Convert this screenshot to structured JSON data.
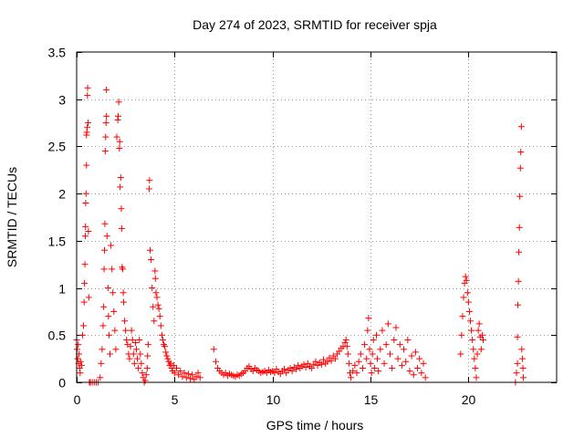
{
  "chart_data": {
    "type": "scatter",
    "title": "Day 274 of 2023, SRMTID for receiver spja",
    "xlabel": "GPS time / hours",
    "ylabel": "SRMTID / TECUs",
    "xlim": [
      0,
      24.5
    ],
    "ylim": [
      0,
      3.5
    ],
    "grid": true,
    "marker": "+",
    "color": "#ff0000",
    "x_ticks": [
      0,
      5,
      10,
      15,
      20
    ],
    "x_tick_labels": [
      "0",
      "5",
      "10",
      "15",
      "20"
    ],
    "y_ticks": [
      0,
      0.5,
      1,
      1.5,
      2,
      2.5,
      3,
      3.5
    ],
    "y_tick_labels": [
      "0",
      "0.5",
      "1",
      "1.5",
      "2",
      "2.5",
      "3",
      "3.5"
    ],
    "series": [
      {
        "name": "SRMTID",
        "points": [
          [
            0.0,
            0.45
          ],
          [
            0.02,
            0.35
          ],
          [
            0.05,
            0.25
          ],
          [
            0.08,
            0.4
          ],
          [
            0.1,
            0.2
          ],
          [
            0.12,
            0.3
          ],
          [
            0.15,
            0.15
          ],
          [
            0.18,
            0.1
          ],
          [
            0.2,
            0.22
          ],
          [
            0.25,
            0.18
          ],
          [
            0.3,
            0.5
          ],
          [
            0.35,
            0.6
          ],
          [
            0.38,
            0.85
          ],
          [
            0.4,
            1.05
          ],
          [
            0.42,
            1.25
          ],
          [
            0.44,
            1.55
          ],
          [
            0.45,
            1.65
          ],
          [
            0.46,
            1.9
          ],
          [
            0.48,
            2.0
          ],
          [
            0.5,
            2.3
          ],
          [
            0.5,
            2.62
          ],
          [
            0.52,
            2.65
          ],
          [
            0.54,
            2.7
          ],
          [
            0.55,
            3.04
          ],
          [
            0.56,
            3.12
          ],
          [
            0.58,
            2.75
          ],
          [
            0.6,
            1.6
          ],
          [
            0.62,
            0.9
          ],
          [
            0.65,
            0.0
          ],
          [
            0.7,
            0.0
          ],
          [
            0.8,
            0.0
          ],
          [
            0.9,
            0.0
          ],
          [
            1.0,
            0.0
          ],
          [
            1.1,
            0.0
          ],
          [
            1.2,
            0.05
          ],
          [
            1.25,
            0.2
          ],
          [
            1.3,
            0.35
          ],
          [
            1.35,
            0.6
          ],
          [
            1.38,
            0.8
          ],
          [
            1.4,
            1.2
          ],
          [
            1.42,
            1.4
          ],
          [
            1.44,
            1.68
          ],
          [
            1.46,
            2.45
          ],
          [
            1.48,
            2.6
          ],
          [
            1.5,
            2.75
          ],
          [
            1.52,
            2.82
          ],
          [
            1.52,
            3.1
          ],
          [
            1.55,
            1.55
          ],
          [
            1.6,
            1.0
          ],
          [
            1.62,
            0.7
          ],
          [
            1.65,
            0.5
          ],
          [
            1.7,
            0.3
          ],
          [
            1.75,
            1.45
          ],
          [
            1.8,
            1.2
          ],
          [
            1.85,
            0.95
          ],
          [
            1.9,
            0.75
          ],
          [
            1.95,
            0.55
          ],
          [
            2.0,
            0.35
          ],
          [
            2.05,
            2.6
          ],
          [
            2.1,
            2.78
          ],
          [
            2.12,
            2.82
          ],
          [
            2.15,
            2.97
          ],
          [
            2.18,
            2.48
          ],
          [
            2.2,
            2.55
          ],
          [
            2.22,
            2.07
          ],
          [
            2.25,
            2.17
          ],
          [
            2.28,
            1.84
          ],
          [
            2.3,
            1.63
          ],
          [
            2.32,
            1.22
          ],
          [
            2.35,
            1.2
          ],
          [
            2.38,
            0.95
          ],
          [
            2.4,
            0.85
          ],
          [
            2.45,
            0.65
          ],
          [
            2.5,
            0.55
          ],
          [
            2.55,
            0.45
          ],
          [
            2.6,
            0.4
          ],
          [
            2.65,
            0.3
          ],
          [
            2.7,
            0.25
          ],
          [
            2.75,
            0.38
          ],
          [
            2.8,
            0.55
          ],
          [
            2.85,
            0.45
          ],
          [
            2.9,
            0.3
          ],
          [
            2.95,
            0.2
          ],
          [
            3.0,
            0.42
          ],
          [
            3.05,
            0.35
          ],
          [
            3.1,
            0.25
          ],
          [
            3.15,
            0.15
          ],
          [
            3.2,
            0.45
          ],
          [
            3.25,
            0.3
          ],
          [
            3.3,
            0.2
          ],
          [
            3.35,
            0.1
          ],
          [
            3.4,
            0.05
          ],
          [
            3.45,
            0.0
          ],
          [
            3.5,
            0.02
          ],
          [
            3.55,
            0.08
          ],
          [
            3.6,
            0.15
          ],
          [
            3.62,
            0.28
          ],
          [
            3.65,
            0.4
          ],
          [
            3.7,
            2.05
          ],
          [
            3.72,
            2.14
          ],
          [
            3.75,
            1.4
          ],
          [
            3.8,
            1.3
          ],
          [
            3.85,
            1.0
          ],
          [
            3.9,
            0.8
          ],
          [
            3.95,
            0.65
          ],
          [
            4.0,
            1.18
          ],
          [
            4.02,
            1.1
          ],
          [
            4.05,
            0.95
          ],
          [
            4.1,
            0.9
          ],
          [
            4.15,
            0.82
          ],
          [
            4.2,
            0.78
          ],
          [
            4.25,
            0.7
          ],
          [
            4.3,
            0.6
          ],
          [
            4.35,
            0.5
          ],
          [
            4.4,
            0.45
          ],
          [
            4.45,
            0.4
          ],
          [
            4.5,
            0.38
          ],
          [
            4.55,
            0.32
          ],
          [
            4.6,
            0.28
          ],
          [
            4.65,
            0.25
          ],
          [
            4.7,
            0.22
          ],
          [
            4.75,
            0.18
          ],
          [
            4.8,
            0.2
          ],
          [
            4.85,
            0.15
          ],
          [
            4.9,
            0.12
          ],
          [
            4.95,
            0.18
          ],
          [
            5.0,
            0.1
          ],
          [
            5.1,
            0.15
          ],
          [
            5.2,
            0.08
          ],
          [
            5.3,
            0.12
          ],
          [
            5.4,
            0.06
          ],
          [
            5.5,
            0.1
          ],
          [
            5.6,
            0.05
          ],
          [
            5.7,
            0.09
          ],
          [
            5.8,
            0.04
          ],
          [
            5.9,
            0.08
          ],
          [
            6.0,
            0.03
          ],
          [
            6.1,
            0.06
          ],
          [
            6.2,
            0.1
          ],
          [
            6.3,
            0.05
          ],
          [
            7.0,
            0.35
          ],
          [
            7.1,
            0.22
          ],
          [
            7.2,
            0.15
          ],
          [
            7.3,
            0.12
          ],
          [
            7.4,
            0.1
          ],
          [
            7.5,
            0.08
          ],
          [
            7.6,
            0.1
          ],
          [
            7.7,
            0.07
          ],
          [
            7.8,
            0.09
          ],
          [
            7.9,
            0.08
          ],
          [
            8.0,
            0.07
          ],
          [
            8.1,
            0.06
          ],
          [
            8.2,
            0.08
          ],
          [
            8.3,
            0.07
          ],
          [
            8.4,
            0.09
          ],
          [
            8.5,
            0.1
          ],
          [
            8.6,
            0.12
          ],
          [
            8.7,
            0.15
          ],
          [
            8.8,
            0.17
          ],
          [
            8.9,
            0.14
          ],
          [
            9.0,
            0.12
          ],
          [
            9.1,
            0.15
          ],
          [
            9.2,
            0.13
          ],
          [
            9.3,
            0.12
          ],
          [
            9.4,
            0.1
          ],
          [
            9.5,
            0.11
          ],
          [
            9.6,
            0.12
          ],
          [
            9.7,
            0.1
          ],
          [
            9.8,
            0.13
          ],
          [
            9.9,
            0.11
          ],
          [
            10.0,
            0.12
          ],
          [
            10.1,
            0.1
          ],
          [
            10.2,
            0.14
          ],
          [
            10.3,
            0.11
          ],
          [
            10.4,
            0.09
          ],
          [
            10.5,
            0.12
          ],
          [
            10.6,
            0.14
          ],
          [
            10.7,
            0.1
          ],
          [
            10.8,
            0.13
          ],
          [
            10.9,
            0.15
          ],
          [
            11.0,
            0.12
          ],
          [
            11.1,
            0.16
          ],
          [
            11.2,
            0.14
          ],
          [
            11.3,
            0.18
          ],
          [
            11.4,
            0.15
          ],
          [
            11.5,
            0.17
          ],
          [
            11.6,
            0.19
          ],
          [
            11.7,
            0.16
          ],
          [
            11.8,
            0.2
          ],
          [
            11.9,
            0.17
          ],
          [
            12.0,
            0.15
          ],
          [
            12.1,
            0.19
          ],
          [
            12.2,
            0.22
          ],
          [
            12.3,
            0.18
          ],
          [
            12.4,
            0.21
          ],
          [
            12.5,
            0.19
          ],
          [
            12.6,
            0.24
          ],
          [
            12.7,
            0.2
          ],
          [
            12.8,
            0.22
          ],
          [
            12.9,
            0.26
          ],
          [
            13.0,
            0.23
          ],
          [
            13.1,
            0.28
          ],
          [
            13.2,
            0.25
          ],
          [
            13.3,
            0.3
          ],
          [
            13.4,
            0.33
          ],
          [
            13.5,
            0.36
          ],
          [
            13.6,
            0.38
          ],
          [
            13.7,
            0.42
          ],
          [
            13.75,
            0.45
          ],
          [
            13.8,
            0.38
          ],
          [
            13.85,
            0.3
          ],
          [
            13.9,
            0.2
          ],
          [
            13.95,
            0.1
          ],
          [
            14.0,
            0.05
          ],
          [
            14.1,
            0.12
          ],
          [
            14.2,
            0.18
          ],
          [
            14.3,
            0.1
          ],
          [
            14.4,
            0.22
          ],
          [
            14.5,
            0.3
          ],
          [
            14.6,
            0.15
          ],
          [
            14.7,
            0.4
          ],
          [
            14.8,
            0.25
          ],
          [
            14.85,
            0.55
          ],
          [
            14.9,
            0.68
          ],
          [
            14.95,
            0.35
          ],
          [
            15.0,
            0.2
          ],
          [
            15.05,
            0.1
          ],
          [
            15.1,
            0.3
          ],
          [
            15.15,
            0.45
          ],
          [
            15.2,
            0.15
          ],
          [
            15.3,
            0.5
          ],
          [
            15.35,
            0.25
          ],
          [
            15.4,
            0.12
          ],
          [
            15.5,
            0.35
          ],
          [
            15.6,
            0.55
          ],
          [
            15.7,
            0.2
          ],
          [
            15.8,
            0.4
          ],
          [
            15.9,
            0.62
          ],
          [
            16.0,
            0.3
          ],
          [
            16.1,
            0.15
          ],
          [
            16.2,
            0.45
          ],
          [
            16.3,
            0.58
          ],
          [
            16.4,
            0.25
          ],
          [
            16.5,
            0.4
          ],
          [
            16.6,
            0.18
          ],
          [
            16.7,
            0.35
          ],
          [
            16.8,
            0.22
          ],
          [
            16.9,
            0.45
          ],
          [
            17.0,
            0.12
          ],
          [
            17.1,
            0.28
          ],
          [
            17.2,
            0.08
          ],
          [
            17.3,
            0.32
          ],
          [
            17.4,
            0.15
          ],
          [
            17.5,
            0.25
          ],
          [
            17.6,
            0.1
          ],
          [
            17.7,
            0.2
          ],
          [
            17.8,
            0.05
          ],
          [
            19.6,
            0.3
          ],
          [
            19.65,
            0.5
          ],
          [
            19.7,
            0.7
          ],
          [
            19.75,
            0.9
          ],
          [
            19.8,
            1.05
          ],
          [
            19.85,
            1.12
          ],
          [
            19.9,
            1.08
          ],
          [
            19.95,
            0.95
          ],
          [
            20.0,
            0.85
          ],
          [
            20.05,
            0.75
          ],
          [
            20.1,
            0.65
          ],
          [
            20.15,
            0.55
          ],
          [
            20.2,
            0.45
          ],
          [
            20.25,
            0.35
          ],
          [
            20.3,
            0.25
          ],
          [
            20.35,
            0.15
          ],
          [
            20.4,
            0.05
          ],
          [
            20.45,
            0.3
          ],
          [
            20.5,
            0.55
          ],
          [
            20.55,
            0.62
          ],
          [
            20.6,
            0.48
          ],
          [
            20.65,
            0.35
          ],
          [
            20.7,
            0.5
          ],
          [
            20.75,
            0.45
          ],
          [
            22.4,
            0.0
          ],
          [
            22.45,
            0.1
          ],
          [
            22.5,
            0.2
          ],
          [
            22.5,
            0.48
          ],
          [
            22.52,
            0.82
          ],
          [
            22.55,
            1.07
          ],
          [
            22.57,
            1.38
          ],
          [
            22.6,
            1.64
          ],
          [
            22.62,
            1.97
          ],
          [
            22.65,
            2.27
          ],
          [
            22.67,
            2.44
          ],
          [
            22.7,
            2.71
          ],
          [
            22.72,
            0.35
          ],
          [
            22.75,
            0.25
          ],
          [
            22.78,
            0.15
          ],
          [
            22.8,
            0.05
          ]
        ]
      }
    ]
  }
}
